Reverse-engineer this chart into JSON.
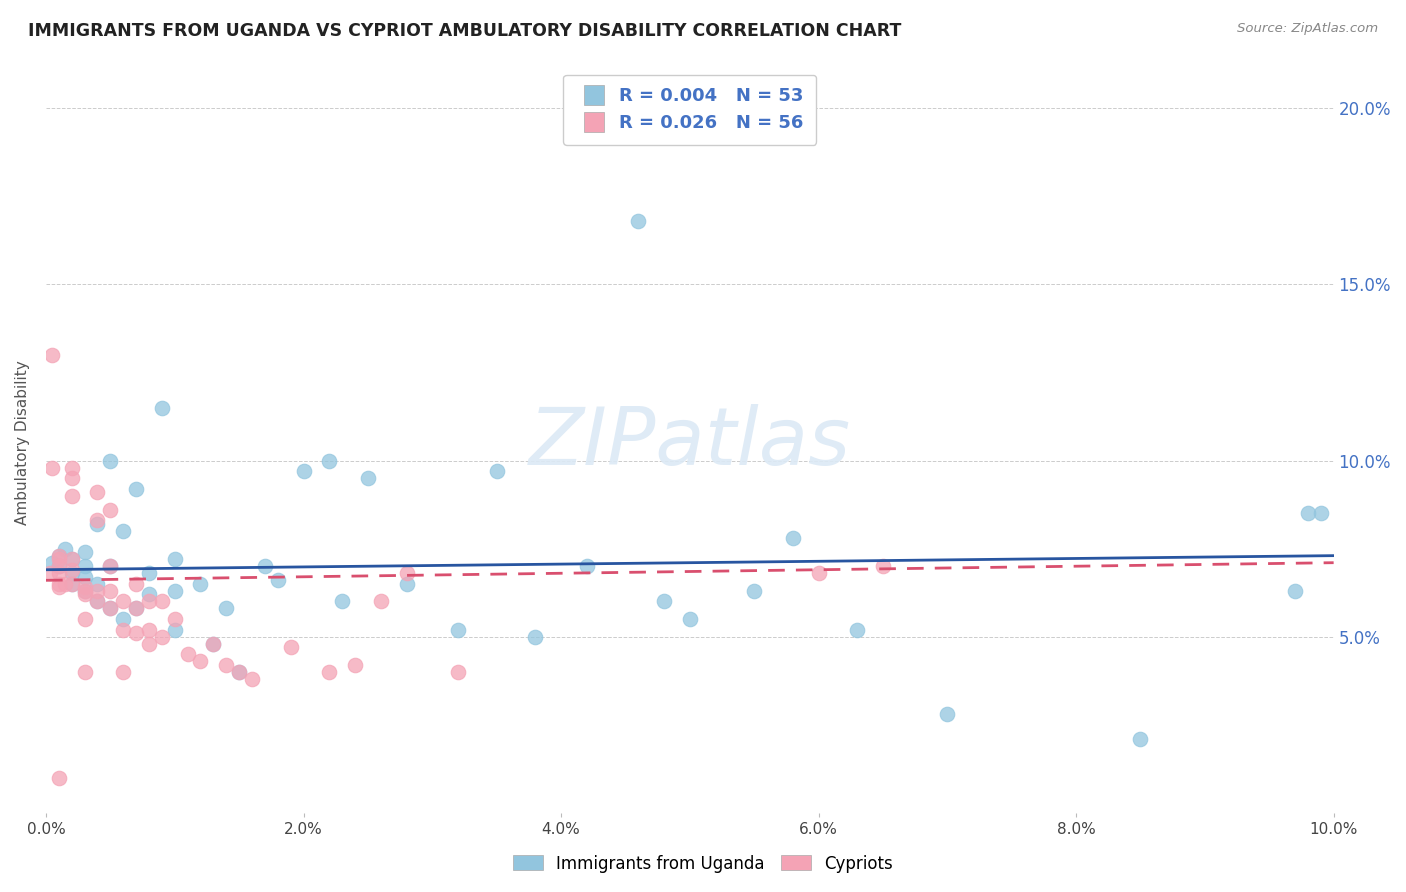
{
  "title": "IMMIGRANTS FROM UGANDA VS CYPRIOT AMBULATORY DISABILITY CORRELATION CHART",
  "source": "Source: ZipAtlas.com",
  "ylabel": "Ambulatory Disability",
  "xlim": [
    0.0,
    0.1
  ],
  "ylim": [
    0.0,
    0.21
  ],
  "xticks": [
    0.0,
    0.02,
    0.04,
    0.06,
    0.08,
    0.1
  ],
  "yticks": [
    0.0,
    0.05,
    0.1,
    0.15,
    0.2
  ],
  "xticklabels": [
    "0.0%",
    "2.0%",
    "4.0%",
    "6.0%",
    "8.0%",
    "10.0%"
  ],
  "yticklabels": [
    "",
    "5.0%",
    "10.0%",
    "15.0%",
    "20.0%"
  ],
  "legend1_r": "0.004",
  "legend1_n": "53",
  "legend2_r": "0.026",
  "legend2_n": "56",
  "blue_color": "#92c5de",
  "pink_color": "#f4a3b5",
  "blue_line_color": "#2855a0",
  "pink_line_color": "#d94f6e",
  "grid_color": "#cccccc",
  "watermark_color": "#dce9f5",
  "blue_trend": [
    0.0,
    0.1,
    0.069,
    0.073
  ],
  "pink_trend": [
    0.0,
    0.1,
    0.066,
    0.071
  ],
  "blue_x": [
    0.0005,
    0.001,
    0.001,
    0.0015,
    0.002,
    0.002,
    0.002,
    0.003,
    0.003,
    0.003,
    0.003,
    0.004,
    0.004,
    0.004,
    0.005,
    0.005,
    0.005,
    0.006,
    0.006,
    0.007,
    0.007,
    0.008,
    0.008,
    0.009,
    0.01,
    0.01,
    0.01,
    0.012,
    0.013,
    0.014,
    0.015,
    0.017,
    0.018,
    0.02,
    0.022,
    0.023,
    0.025,
    0.028,
    0.032,
    0.035,
    0.038,
    0.042,
    0.046,
    0.048,
    0.05,
    0.055,
    0.058,
    0.063,
    0.07,
    0.085,
    0.097,
    0.098,
    0.099
  ],
  "blue_y": [
    0.071,
    0.073,
    0.07,
    0.075,
    0.065,
    0.068,
    0.072,
    0.063,
    0.067,
    0.07,
    0.074,
    0.06,
    0.065,
    0.082,
    0.058,
    0.07,
    0.1,
    0.055,
    0.08,
    0.092,
    0.058,
    0.062,
    0.068,
    0.115,
    0.072,
    0.063,
    0.052,
    0.065,
    0.048,
    0.058,
    0.04,
    0.07,
    0.066,
    0.097,
    0.1,
    0.06,
    0.095,
    0.065,
    0.052,
    0.097,
    0.05,
    0.07,
    0.168,
    0.06,
    0.055,
    0.063,
    0.078,
    0.052,
    0.028,
    0.021,
    0.063,
    0.085,
    0.085
  ],
  "pink_x": [
    0.0003,
    0.0005,
    0.0005,
    0.001,
    0.001,
    0.001,
    0.001,
    0.001,
    0.001,
    0.001,
    0.0015,
    0.002,
    0.002,
    0.002,
    0.002,
    0.002,
    0.002,
    0.003,
    0.003,
    0.003,
    0.003,
    0.003,
    0.004,
    0.004,
    0.004,
    0.004,
    0.005,
    0.005,
    0.005,
    0.005,
    0.006,
    0.006,
    0.006,
    0.007,
    0.007,
    0.007,
    0.008,
    0.008,
    0.008,
    0.009,
    0.009,
    0.01,
    0.011,
    0.012,
    0.013,
    0.014,
    0.015,
    0.016,
    0.019,
    0.022,
    0.024,
    0.026,
    0.028,
    0.032,
    0.06,
    0.065
  ],
  "pink_y": [
    0.068,
    0.13,
    0.098,
    0.073,
    0.072,
    0.07,
    0.068,
    0.065,
    0.064,
    0.01,
    0.065,
    0.098,
    0.095,
    0.09,
    0.072,
    0.069,
    0.065,
    0.064,
    0.063,
    0.062,
    0.055,
    0.04,
    0.091,
    0.083,
    0.063,
    0.06,
    0.086,
    0.07,
    0.063,
    0.058,
    0.06,
    0.052,
    0.04,
    0.065,
    0.058,
    0.051,
    0.06,
    0.052,
    0.048,
    0.06,
    0.05,
    0.055,
    0.045,
    0.043,
    0.048,
    0.042,
    0.04,
    0.038,
    0.047,
    0.04,
    0.042,
    0.06,
    0.068,
    0.04,
    0.068,
    0.07
  ]
}
